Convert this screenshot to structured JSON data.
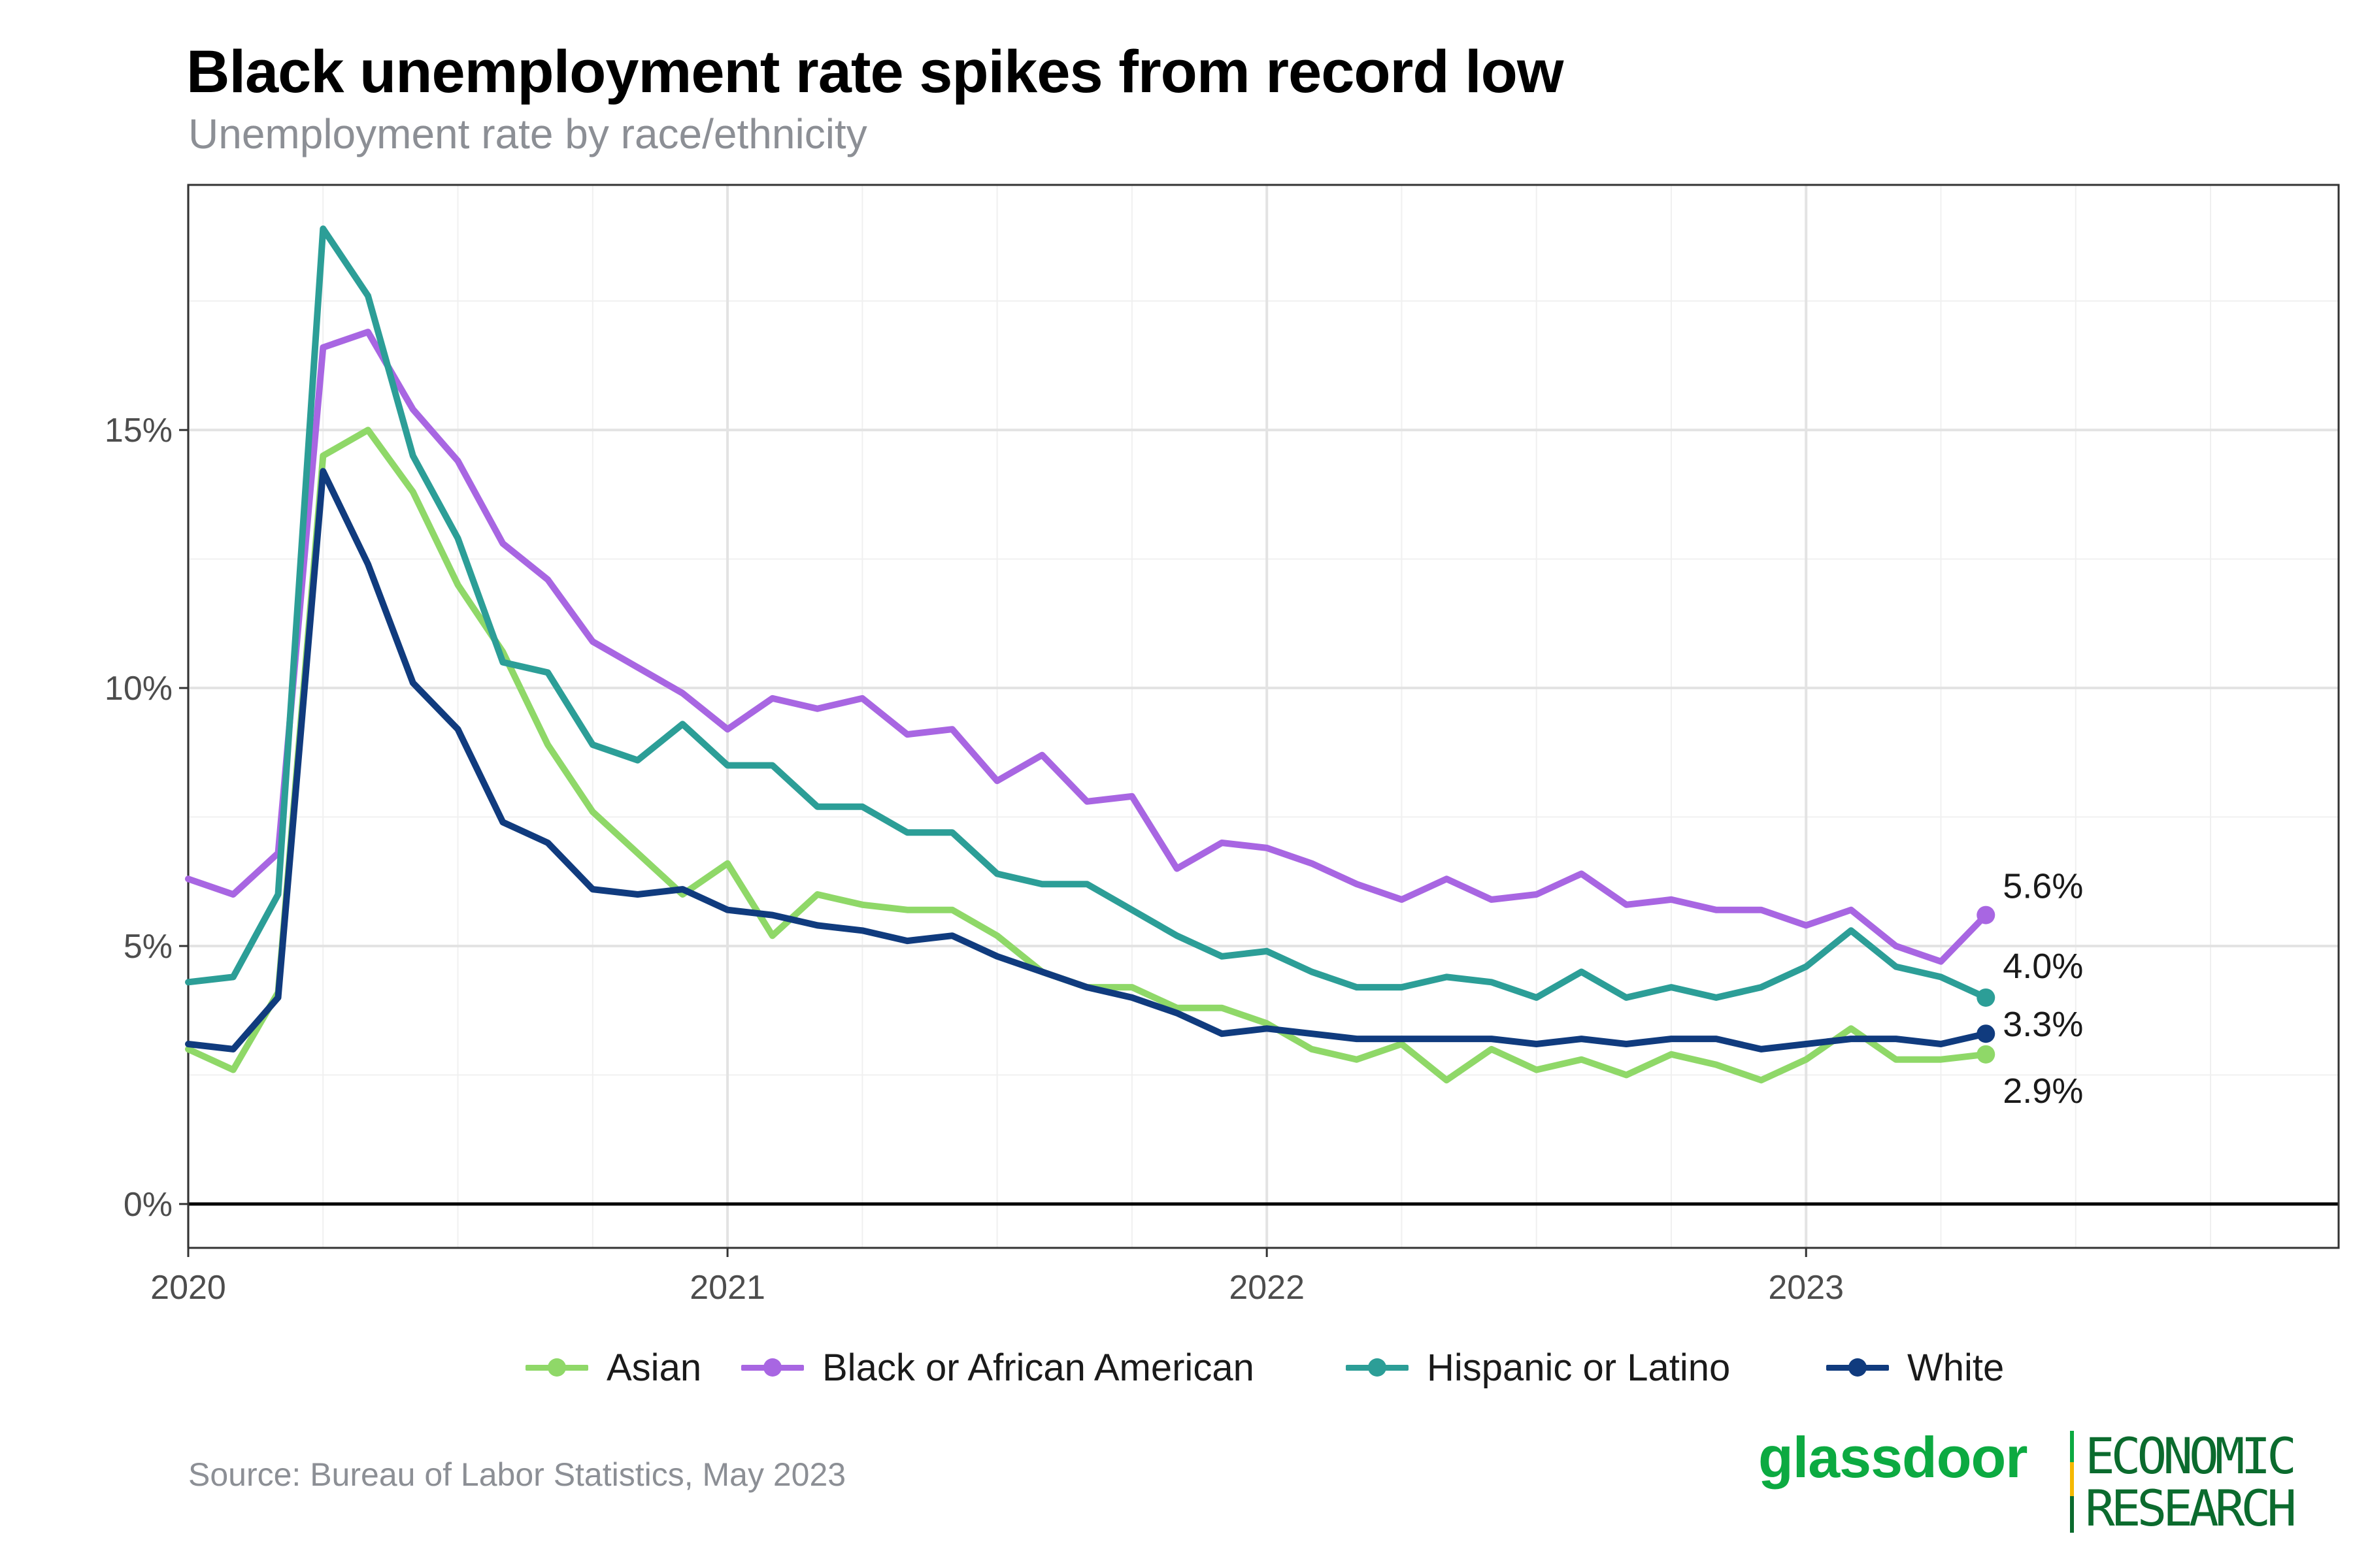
{
  "title": "Black unemployment rate spikes from record low",
  "subtitle": "Unemployment rate by race/ethnicity",
  "source": "Source: Bureau of Labor Statistics, May 2023",
  "brand": {
    "wordmark": "glassdoor",
    "line1": "ECONOMIC",
    "line2": "RESEARCH"
  },
  "chart_data": {
    "type": "line",
    "x_start": "2020-01",
    "x_frequency": "monthly",
    "x_ticks": [
      "2020",
      "2021",
      "2022",
      "2023"
    ],
    "y_ticks": [
      "0%",
      "5%",
      "10%",
      "15%"
    ],
    "y_tick_values": [
      0,
      5,
      10,
      15
    ],
    "ylim": [
      -0.85,
      19.75
    ],
    "xlim": [
      "2020-01",
      "2023-12"
    ],
    "grid": true,
    "legend_position": "bottom",
    "series": [
      {
        "name": "Asian",
        "color": "#8fd868",
        "end_label": "2.9%",
        "values": [
          3.0,
          2.6,
          4.1,
          14.5,
          15.0,
          13.8,
          12.0,
          10.7,
          8.9,
          7.6,
          6.8,
          6.0,
          6.6,
          5.2,
          6.0,
          5.8,
          5.7,
          5.7,
          5.2,
          4.5,
          4.2,
          4.2,
          3.8,
          3.8,
          3.5,
          3.0,
          2.8,
          3.1,
          2.4,
          3.0,
          2.6,
          2.8,
          2.5,
          2.9,
          2.7,
          2.4,
          2.8,
          3.4,
          2.8,
          2.8,
          2.9
        ]
      },
      {
        "name": "Black or African American",
        "color": "#a866e2",
        "end_label": "5.6%",
        "values": [
          6.3,
          6.0,
          6.8,
          16.6,
          16.9,
          15.4,
          14.4,
          12.8,
          12.1,
          10.9,
          10.4,
          9.9,
          9.2,
          9.8,
          9.6,
          9.8,
          9.1,
          9.2,
          8.2,
          8.7,
          7.8,
          7.9,
          6.5,
          7.0,
          6.9,
          6.6,
          6.2,
          5.9,
          6.3,
          5.9,
          6.0,
          6.4,
          5.8,
          5.9,
          5.7,
          5.7,
          5.4,
          5.7,
          5.0,
          4.7,
          5.6
        ]
      },
      {
        "name": "Hispanic or Latino",
        "color": "#2c9e97",
        "end_label": "4.0%",
        "values": [
          4.3,
          4.4,
          6.0,
          18.9,
          17.6,
          14.5,
          12.9,
          10.5,
          10.3,
          8.9,
          8.6,
          9.3,
          8.5,
          8.5,
          7.7,
          7.7,
          7.2,
          7.2,
          6.4,
          6.2,
          6.2,
          5.7,
          5.2,
          4.8,
          4.9,
          4.5,
          4.2,
          4.2,
          4.4,
          4.3,
          4.0,
          4.5,
          4.0,
          4.2,
          4.0,
          4.2,
          4.6,
          5.3,
          4.6,
          4.4,
          4.0
        ]
      },
      {
        "name": "White",
        "color": "#103b7e",
        "end_label": "3.3%",
        "values": [
          3.1,
          3.0,
          4.0,
          14.2,
          12.4,
          10.1,
          9.2,
          7.4,
          7.0,
          6.1,
          6.0,
          6.1,
          5.7,
          5.6,
          5.4,
          5.3,
          5.1,
          5.2,
          4.8,
          4.5,
          4.2,
          4.0,
          3.7,
          3.3,
          3.4,
          3.3,
          3.2,
          3.2,
          3.2,
          3.2,
          3.1,
          3.2,
          3.1,
          3.2,
          3.2,
          3.0,
          3.1,
          3.2,
          3.2,
          3.1,
          3.3
        ]
      }
    ]
  }
}
